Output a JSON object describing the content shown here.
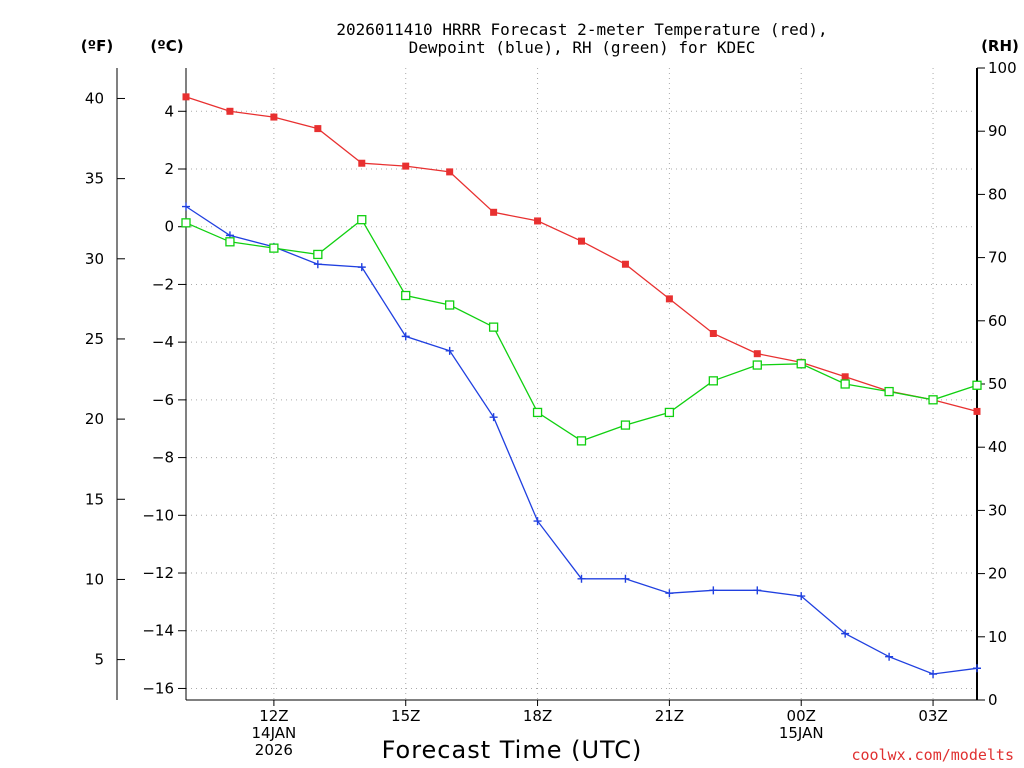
{
  "chart_data": {
    "type": "line",
    "title_line1": "2026011410 HRRR Forecast 2-meter Temperature (red),",
    "title_line2": "Dewpoint (blue), RH (green) for KDEC",
    "xlabel": "Forecast Time (UTC)",
    "credit": "coolwx.com/modelts",
    "left_outer_unit": "(ºF)",
    "left_inner_unit": "(ºC)",
    "right_unit": "(RH)",
    "x_hours": [
      10,
      11,
      12,
      13,
      14,
      15,
      16,
      17,
      18,
      19,
      20,
      21,
      22,
      23,
      24,
      25,
      26,
      27,
      28
    ],
    "xlim": [
      10,
      28
    ],
    "x_ticks": [
      {
        "hour": 12,
        "lines": [
          "12Z",
          "14JAN",
          "2026"
        ]
      },
      {
        "hour": 15,
        "lines": [
          "15Z"
        ]
      },
      {
        "hour": 18,
        "lines": [
          "18Z"
        ]
      },
      {
        "hour": 21,
        "lines": [
          "21Z"
        ]
      },
      {
        "hour": 24,
        "lines": [
          "00Z",
          "15JAN"
        ]
      },
      {
        "hour": 27,
        "lines": [
          "03Z"
        ]
      }
    ],
    "celsius_axis": {
      "ylim": [
        -16.4,
        5.5
      ],
      "ticks": [
        4,
        2,
        0,
        -2,
        -4,
        -6,
        -8,
        -10,
        -12,
        -14,
        -16
      ]
    },
    "fahrenheit_ticks": [
      40,
      35,
      30,
      25,
      20,
      15,
      10,
      5
    ],
    "rh_axis": {
      "ylim": [
        0,
        100
      ],
      "ticks": [
        0,
        10,
        20,
        30,
        40,
        50,
        60,
        70,
        80,
        90,
        100
      ]
    },
    "series": [
      {
        "name": "Temperature",
        "color": "#e83030",
        "marker": "filled-square",
        "axis": "celsius",
        "values": [
          4.5,
          4.0,
          3.8,
          3.4,
          2.2,
          2.1,
          1.9,
          0.5,
          0.2,
          -0.5,
          -1.3,
          -2.5,
          -3.7,
          -4.4,
          -4.7,
          -5.2,
          -5.7,
          -6.0,
          -6.4
        ]
      },
      {
        "name": "Dewpoint",
        "color": "#2040e0",
        "marker": "plus",
        "axis": "celsius",
        "values": [
          0.7,
          -0.3,
          -0.7,
          -1.3,
          -1.4,
          -3.8,
          -4.3,
          -6.6,
          -10.2,
          -12.2,
          -12.2,
          -12.7,
          -12.6,
          -12.6,
          -12.8,
          -14.1,
          -14.9,
          -15.5,
          -15.3
        ]
      },
      {
        "name": "RH",
        "color": "#10d010",
        "marker": "open-square",
        "axis": "rh",
        "values": [
          75.5,
          72.5,
          71.5,
          70.5,
          76,
          64,
          62.5,
          59,
          45.5,
          41,
          43.5,
          45.5,
          50.5,
          53,
          53.2,
          50,
          48.8,
          47.5,
          49.8
        ]
      }
    ]
  }
}
